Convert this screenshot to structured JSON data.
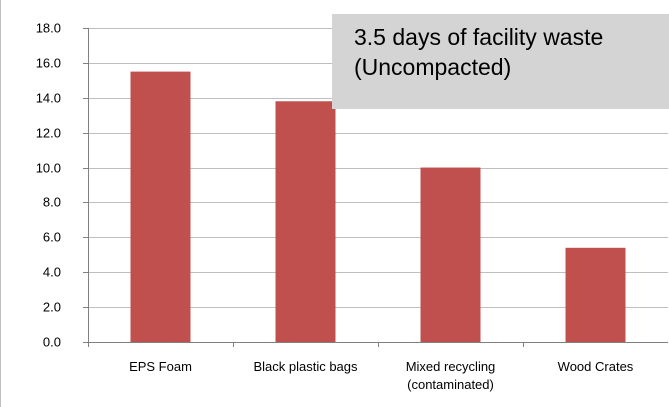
{
  "callout": {
    "line1": "3.5 days of facility waste",
    "line2": "(Uncompacted)"
  },
  "colors": {
    "bar": "#c0504d",
    "gridline": "#bfbfbf",
    "axis": "#808080",
    "callout_bg": "#d4d4d4"
  },
  "chart_data": {
    "type": "bar",
    "categories": [
      [
        "EPS Foam"
      ],
      [
        "Black plastic bags"
      ],
      [
        "Mixed recycling",
        "(contaminated)"
      ],
      [
        "Wood Crates"
      ]
    ],
    "values": [
      15.5,
      13.8,
      10.0,
      5.4
    ],
    "ylim": [
      0,
      18
    ],
    "yticks": [
      "0.0",
      "2.0",
      "4.0",
      "6.0",
      "8.0",
      "10.0",
      "12.0",
      "14.0",
      "16.0",
      "18.0"
    ],
    "grid": true,
    "legend": "none"
  }
}
